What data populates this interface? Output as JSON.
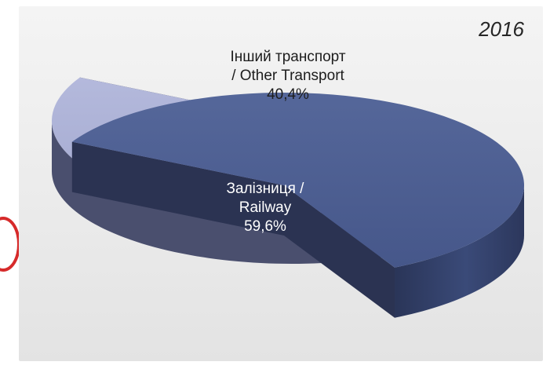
{
  "chart_data": {
    "type": "pie",
    "title": "2016",
    "slices": [
      {
        "label_ua": "Залізниця /",
        "label_en": "Railway",
        "value": 59.6,
        "value_label": "59,6%",
        "color": "#4a5b8c"
      },
      {
        "label_ua": "Інший транспорт",
        "label_en": "/ Other Transport",
        "value": 40.4,
        "value_label": "40,4%",
        "color": "#a6acd2"
      }
    ],
    "style": "3d-exploded",
    "legend": "none"
  }
}
